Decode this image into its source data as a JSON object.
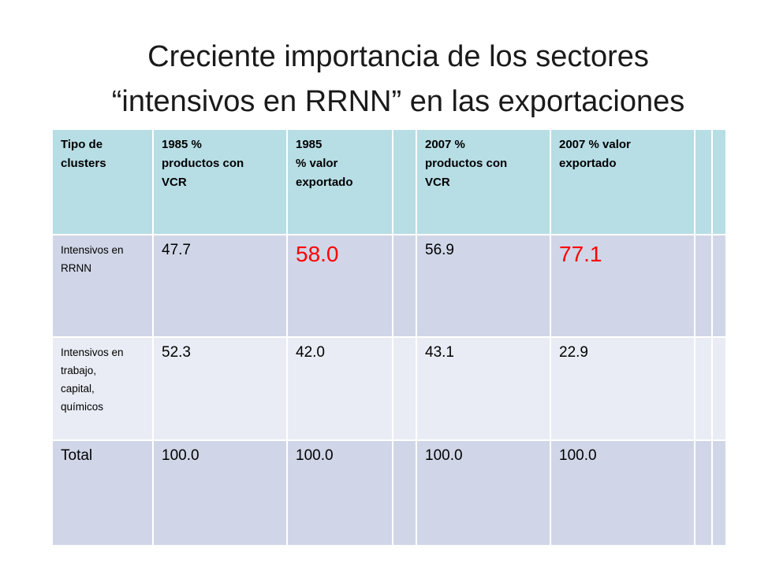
{
  "slide": {
    "title_line1": "Creciente importancia de los sectores",
    "title_line2": "“intensivos en RRNN” en las exportaciones"
  },
  "table": {
    "header": {
      "cluster_type": "Tipo de\nclusters",
      "products_rca_1985": "1985 %\nproductos con\nVCR",
      "export_value_1985": "1985\n% valor\nexportado",
      "products_rca_2007": "2007 %\nproductos con\nVCR",
      "export_value_2007": "2007 % valor\nexportado"
    },
    "rows": [
      {
        "label": "Intensivos en\nRRNN",
        "products_rca_1985": "47.7",
        "export_value_1985": "58.0",
        "products_rca_2007": "56.9",
        "export_value_2007": "77.1"
      },
      {
        "label": "Intensivos en\ntrabajo,\ncapital,\nquímicos",
        "products_rca_1985": "52.3",
        "export_value_1985": "42.0",
        "products_rca_2007": "43.1",
        "export_value_2007": "22.9"
      },
      {
        "label": "Total",
        "products_rca_1985": "100.0",
        "export_value_1985": "100.0",
        "products_rca_2007": "100.0",
        "export_value_2007": "100.0"
      }
    ]
  },
  "colors": {
    "header_bg": "#b7dde5",
    "row_dark_bg": "#d0d6e7",
    "row_light_bg": "#e9ecf4",
    "highlight_text": "#ff0000"
  }
}
